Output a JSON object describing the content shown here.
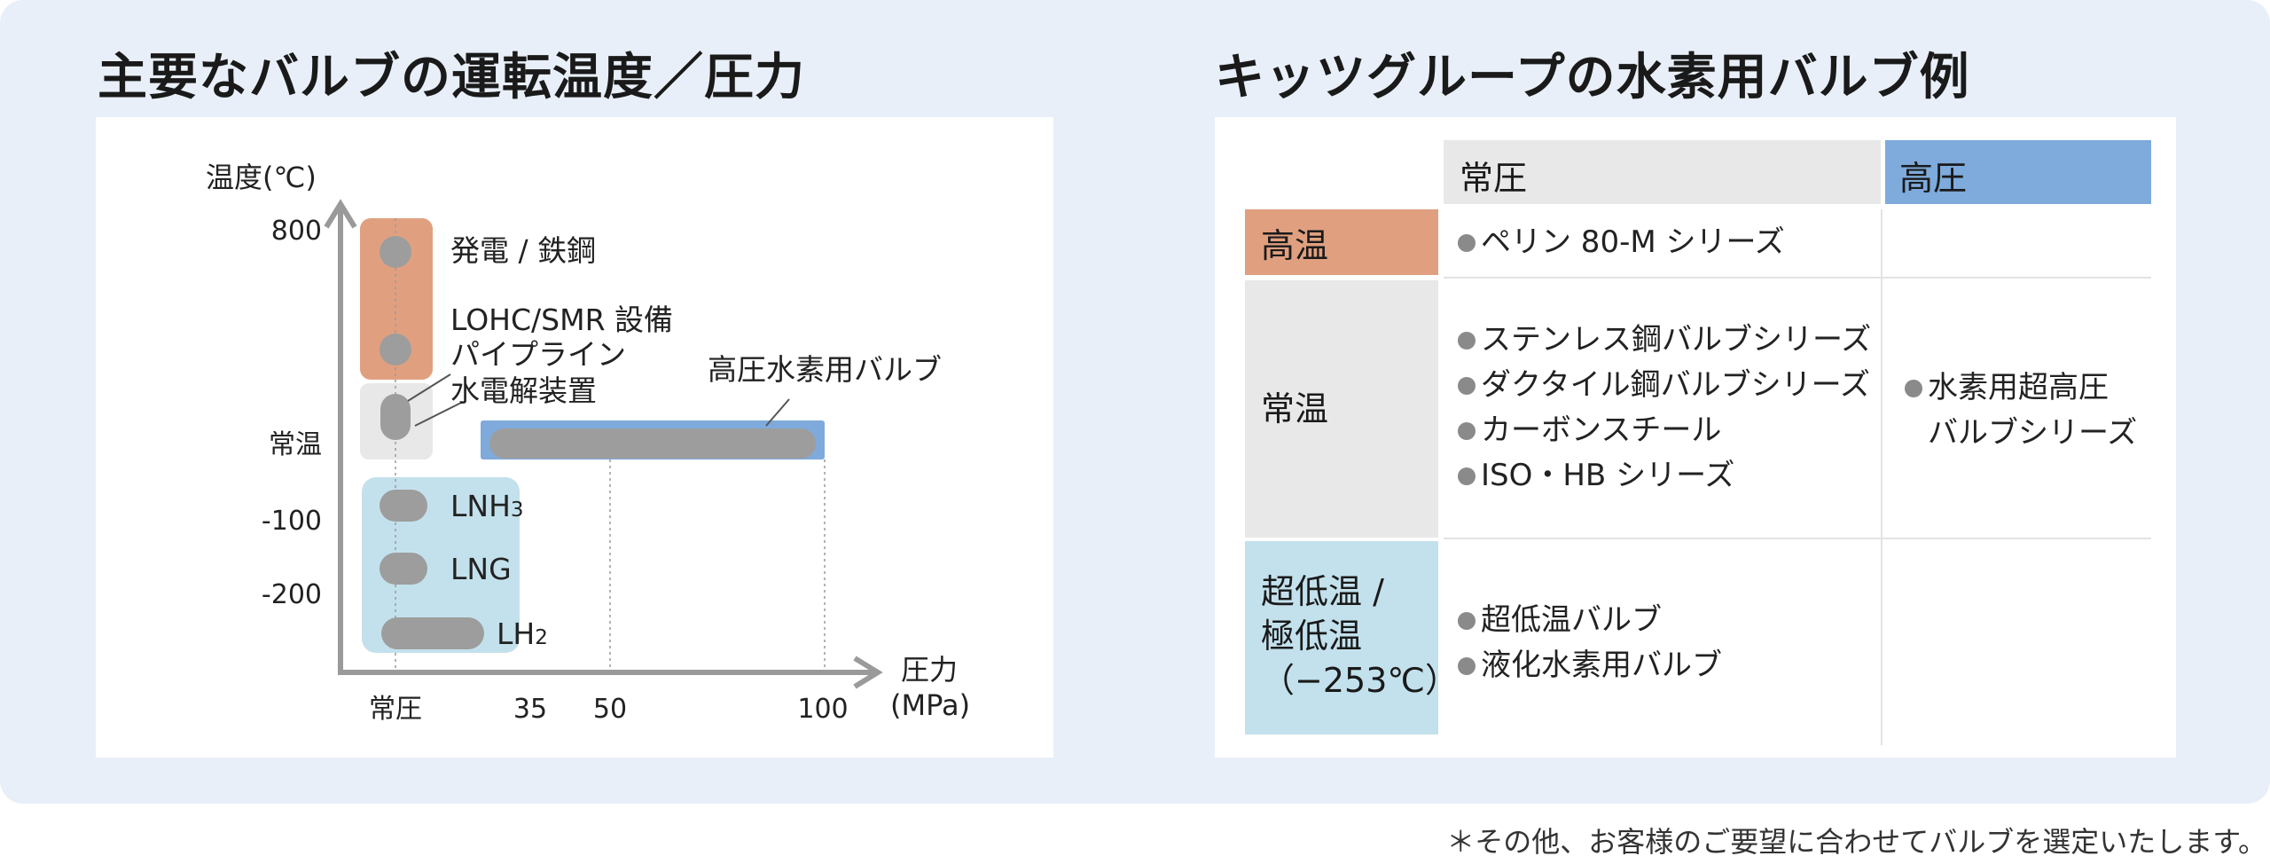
{
  "titles": {
    "left": "主要なバルブの運転温度／圧力",
    "right": "キッツグループの水素用バルブ例"
  },
  "chart_data": {
    "type": "range",
    "ylabel": "温度(℃)",
    "xlabel": "圧力",
    "xunit": "(MPa)",
    "x_ticks": [
      "常圧",
      "35",
      "50",
      "100"
    ],
    "y_ticks": [
      "800",
      "常温",
      "-100",
      "-200"
    ],
    "groups": [
      {
        "name": "high-temp",
        "color": "#e0a080"
      },
      {
        "name": "ambient",
        "color": "#e8e8e8"
      },
      {
        "name": "cryogenic",
        "color": "#c3e1ec"
      },
      {
        "name": "high-pressure",
        "color": "#7eaadc"
      }
    ],
    "marks": [
      {
        "label": "発電 / 鉄鋼",
        "x_min": "常圧",
        "x_max": "常圧",
        "temperature": "800"
      },
      {
        "label": "LOHC/SMR 設備",
        "x_min": "常圧",
        "x_max": "常圧",
        "temperature": "高温"
      },
      {
        "label": "パイプライン",
        "x_min": "常圧",
        "x_max": "常圧",
        "temperature": "常温"
      },
      {
        "label": "水電解装置",
        "x_min": "常圧",
        "x_max": "常圧",
        "temperature": "常温"
      },
      {
        "label": "高圧水素用バルブ",
        "x_min": "35",
        "x_max": "100",
        "temperature": "常温"
      },
      {
        "label": "LNH",
        "label_sub": "3",
        "x_min": "常圧",
        "x_max": "常圧",
        "temperature": "-100"
      },
      {
        "label": "LNG",
        "x_min": "常圧",
        "x_max": "常圧",
        "temperature": "-150"
      },
      {
        "label": "LH",
        "label_sub": "2",
        "x_min": "常圧",
        "x_max": "35",
        "temperature": "-253"
      }
    ]
  },
  "table": {
    "col_headers": [
      "常圧",
      "高圧"
    ],
    "rows": [
      {
        "label_lines": [
          "高温"
        ],
        "color": "#e0a080",
        "normal": [
          {
            "text": "ペリン 80-M シリーズ",
            "bullet": true
          }
        ],
        "high": []
      },
      {
        "label_lines": [
          "常温"
        ],
        "color": "#e8e8e8",
        "normal": [
          {
            "text": "ステンレス鋼バルブシリーズ",
            "bullet": true
          },
          {
            "text": "ダクタイル鋼バルブシリーズ",
            "bullet": true
          },
          {
            "text": "カーボンスチール",
            "bullet": true
          },
          {
            "text": "ISO・HB シリーズ",
            "bullet": true
          }
        ],
        "high": [
          {
            "text": "水素用超高圧",
            "bullet": true
          },
          {
            "text": "バルブシリーズ",
            "bullet": false
          }
        ]
      },
      {
        "label_lines": [
          "超低温 /",
          "極低温",
          "（−253℃）"
        ],
        "color": "#c3e1ec",
        "normal": [
          {
            "text": "超低温バルブ",
            "bullet": true
          },
          {
            "text": "液化水素用バルブ",
            "bullet": true
          }
        ],
        "high": []
      }
    ],
    "header_colors": {
      "normal": "#e8e8e8",
      "high": "#7eaadc"
    }
  },
  "footnote": "＊その他、お客様のご要望に合わせてバルブを選定いたします。"
}
